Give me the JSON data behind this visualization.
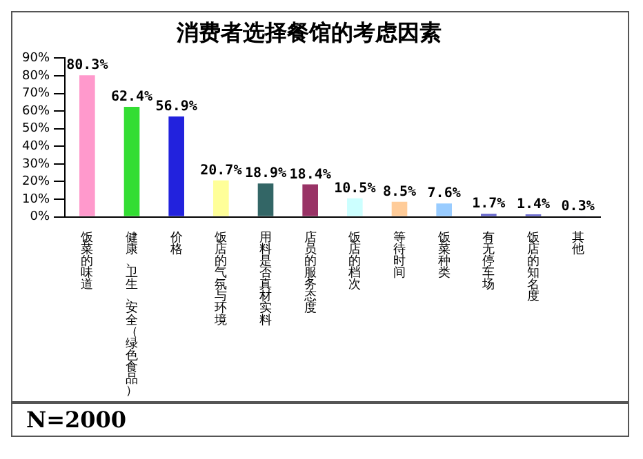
{
  "chart_data": {
    "type": "bar",
    "title": "消费者选择餐馆的考虑因素",
    "categories": [
      "饭菜的味道",
      "健康、卫生、安全（绿色食品）",
      "价格",
      "饭店的气氛与环境",
      "用料是否真材实料",
      "店员的服务态度",
      "饭店的档次",
      "等待时间",
      "饭菜种类",
      "有无停车场",
      "饭店的知名度",
      "其他"
    ],
    "values": [
      80.3,
      62.4,
      56.9,
      20.7,
      18.9,
      18.4,
      10.5,
      8.5,
      7.6,
      1.7,
      1.4,
      0.3
    ],
    "value_labels": [
      "80.3%",
      "62.4%",
      "56.9%",
      "20.7%",
      "18.9%",
      "18.4%",
      "10.5%",
      "8.5%",
      "7.6%",
      "1.7%",
      "1.4%",
      "0.3%"
    ],
    "colors": [
      "#ff99cc",
      "#33dd33",
      "#2222dd",
      "#ffff99",
      "#336666",
      "#993366",
      "#ccffff",
      "#ffcc99",
      "#99ccff",
      "#6666cc",
      "#6666cc",
      "#ccccff"
    ],
    "ylim": [
      0,
      90
    ],
    "yticks": [
      {
        "value": 0,
        "label": "0%"
      },
      {
        "value": 10,
        "label": "10%"
      },
      {
        "value": 20,
        "label": "20%"
      },
      {
        "value": 30,
        "label": "30%"
      },
      {
        "value": 40,
        "label": "40%"
      },
      {
        "value": 50,
        "label": "50%"
      },
      {
        "value": 60,
        "label": "60%"
      },
      {
        "value": 70,
        "label": "70%"
      },
      {
        "value": 80,
        "label": "80%"
      },
      {
        "value": 90,
        "label": "90%"
      }
    ],
    "grid": false,
    "legend": false,
    "annotations": [
      "N=2000"
    ]
  }
}
